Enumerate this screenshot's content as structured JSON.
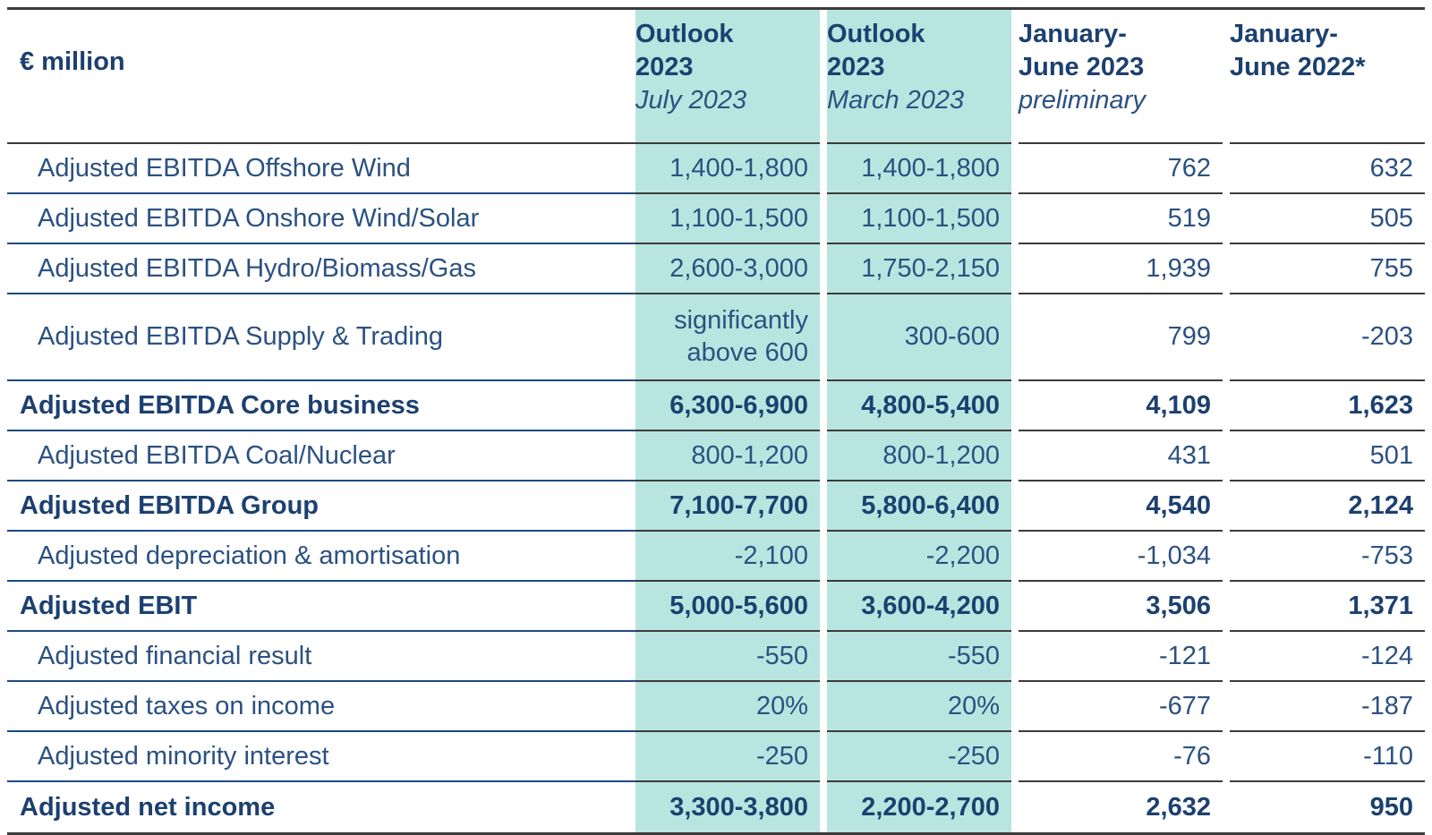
{
  "unit_label": "€ million",
  "columns": [
    {
      "title_line1": "Outlook",
      "title_line2": "2023",
      "subtitle": "July 2023",
      "highlight": true
    },
    {
      "title_line1": "Outlook",
      "title_line2": "2023",
      "subtitle": "March 2023",
      "highlight": true
    },
    {
      "title_line1": "January-",
      "title_line2": "June 2023",
      "subtitle": "preliminary",
      "highlight": false
    },
    {
      "title_line1": "January-",
      "title_line2": "June 2022*",
      "subtitle": "",
      "highlight": false
    }
  ],
  "colors": {
    "highlight_background": "#b8e5df",
    "text_navy": "#2b5181",
    "text_navy_bold": "#1c406f",
    "separator_navy": "#1d4a80",
    "separator_dark": "#3b3b3b"
  },
  "rows": [
    {
      "label": "Adjusted EBITDA Offshore Wind",
      "bold": false,
      "values": [
        "1,400-1,800",
        "1,400-1,800",
        "762",
        "632"
      ]
    },
    {
      "label": "Adjusted EBITDA Onshore Wind/Solar",
      "bold": false,
      "values": [
        "1,100-1,500",
        "1,100-1,500",
        "519",
        "505"
      ]
    },
    {
      "label": "Adjusted EBITDA Hydro/Biomass/Gas",
      "bold": false,
      "values": [
        "2,600-3,000",
        "1,750-2,150",
        "1,939",
        "755"
      ]
    },
    {
      "label": "Adjusted EBITDA Supply & Trading",
      "bold": false,
      "values": [
        "significantly above 600",
        "300-600",
        "799",
        "-203"
      ]
    },
    {
      "label": "Adjusted EBITDA Core business",
      "bold": true,
      "values": [
        "6,300-6,900",
        "4,800-5,400",
        "4,109",
        "1,623"
      ]
    },
    {
      "label": "Adjusted EBITDA Coal/Nuclear",
      "bold": false,
      "values": [
        "800-1,200",
        "800-1,200",
        "431",
        "501"
      ]
    },
    {
      "label": "Adjusted EBITDA Group",
      "bold": true,
      "values": [
        "7,100-7,700",
        "5,800-6,400",
        "4,540",
        "2,124"
      ]
    },
    {
      "label": "Adjusted depreciation & amortisation",
      "bold": false,
      "values": [
        "-2,100",
        "-2,200",
        "-1,034",
        "-753"
      ]
    },
    {
      "label": "Adjusted EBIT",
      "bold": true,
      "values": [
        "5,000-5,600",
        "3,600-4,200",
        "3,506",
        "1,371"
      ]
    },
    {
      "label": "Adjusted financial result",
      "bold": false,
      "values": [
        "-550",
        "-550",
        "-121",
        "-124"
      ]
    },
    {
      "label": "Adjusted taxes on income",
      "bold": false,
      "values": [
        "20%",
        "20%",
        "-677",
        "-187"
      ]
    },
    {
      "label": "Adjusted minority interest",
      "bold": false,
      "values": [
        "-250",
        "-250",
        "-76",
        "-110"
      ]
    },
    {
      "label": "Adjusted net income",
      "bold": true,
      "values": [
        "3,300-3,800",
        "2,200-2,700",
        "2,632",
        "950"
      ]
    }
  ]
}
